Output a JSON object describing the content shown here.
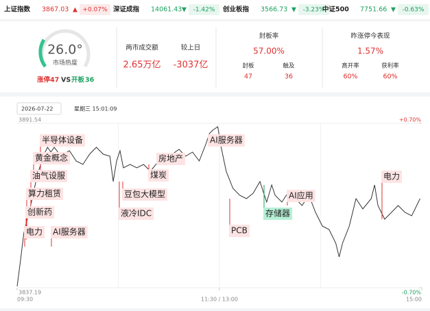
{
  "indices": [
    {
      "name": "上证指数",
      "value": "3867.03",
      "arrow": "▲",
      "change": "+0.07%",
      "color": "#e03030"
    },
    {
      "name": "深证成指",
      "value": "14061.43",
      "arrow": "▼",
      "change": "-1.42%",
      "color": "#1aa260"
    },
    {
      "name": "创业板指",
      "value": "3566.73",
      "arrow": "▼",
      "change": "-3.23%",
      "color": "#1aa260"
    },
    {
      "name": "中证500",
      "value": "7751.66",
      "arrow": "▼",
      "change": "-0.63%",
      "color": "#1aa260"
    }
  ],
  "heat": {
    "value": "26.0°",
    "label": "市场热度",
    "limit_up_label": "涨停",
    "limit_up": "47",
    "vs": "VS",
    "opened_label": "开板",
    "opened": "36"
  },
  "turnover": {
    "label": "两市成交额",
    "value": "2.65万亿",
    "diff_label": "较上日",
    "diff": "-3037亿"
  },
  "seal_rate": {
    "title": "封板率",
    "value": "57.00%",
    "sealed_label": "封板",
    "sealed": "47",
    "touched_label": "触及",
    "touched": "36"
  },
  "yesterday": {
    "title": "昨涨停今表现",
    "value": "1.57%",
    "open_high_label": "高开率",
    "open_high": "60%",
    "profit_label": "获利率",
    "profit": "60%"
  },
  "toolbar": {
    "date": "2026-07-22",
    "time": "星期三 15:01:09"
  },
  "chart_data": {
    "type": "line",
    "color": "#333333",
    "x": [
      0,
      2,
      4,
      8,
      12,
      16,
      18,
      20,
      22,
      26,
      31,
      35,
      39,
      43,
      47,
      51,
      55,
      57,
      59,
      61,
      63,
      67,
      71,
      75,
      79,
      83,
      87,
      92,
      96,
      100,
      104,
      108,
      112,
      114,
      116,
      119,
      121,
      124,
      128,
      132,
      136,
      140,
      144,
      146,
      148,
      151,
      153,
      157,
      161,
      165,
      169,
      173,
      177,
      181,
      185,
      189,
      191,
      193,
      197,
      201,
      205,
      210,
      212,
      214,
      218,
      222,
      226,
      230,
      234,
      239
    ],
    "values": [
      3837.64,
      3846.25,
      3855.31,
      3864.36,
      3874.56,
      3881.35,
      3883.61,
      3882.03,
      3883.61,
      3880.67,
      3882.48,
      3879.08,
      3877.95,
      3881.35,
      3883.61,
      3881.35,
      3880.67,
      3872.29,
      3879.08,
      3882.48,
      3876.82,
      3877.95,
      3876.82,
      3877.95,
      3875.69,
      3878.4,
      3880.22,
      3881.35,
      3882.93,
      3880.67,
      3882.03,
      3879.08,
      3884.75,
      3888.14,
      3889.28,
      3890.41,
      3883.61,
      3875.69,
      3870.02,
      3867.76,
      3866.63,
      3868.44,
      3872.29,
      3868.89,
      3865.49,
      3871.16,
      3867.76,
      3865.49,
      3868.89,
      3866.63,
      3864.36,
      3867.76,
      3862.1,
      3857.56,
      3856.43,
      3851.9,
      3847.37,
      3851.9,
      3857.56,
      3866.63,
      3863.23,
      3866.63,
      3871.16,
      3864.36,
      3859.83,
      3862.1,
      3864.36,
      3862.1,
      3860.96,
      3866.63
    ],
    "xlim": [
      0,
      240
    ],
    "xticks": [
      {
        "value": 0,
        "label": "09:30"
      },
      {
        "value": 120,
        "label": "11:30 / 13:00"
      },
      {
        "value": 240,
        "label": "15:00"
      }
    ],
    "ylim": [
      3837.19,
      3891.54
    ],
    "yticks": [
      3837.19,
      3891.54
    ],
    "y2lim": [
      -0.7,
      0.7
    ],
    "y2ticks": [
      {
        "value": -0.7,
        "label": "-0.70%"
      },
      {
        "value": 0.7,
        "label": "+0.70%"
      }
    ],
    "annotations": [
      "半导体设备",
      "黄金概念",
      "油气设服",
      "算力租赁",
      "创新药",
      "电力",
      "AI服务器",
      "液冷IDC",
      "豆包大模型",
      "煤炭",
      "房地产",
      "AI服务器",
      "PCB",
      "存储器",
      "AI应用",
      "电力"
    ]
  }
}
